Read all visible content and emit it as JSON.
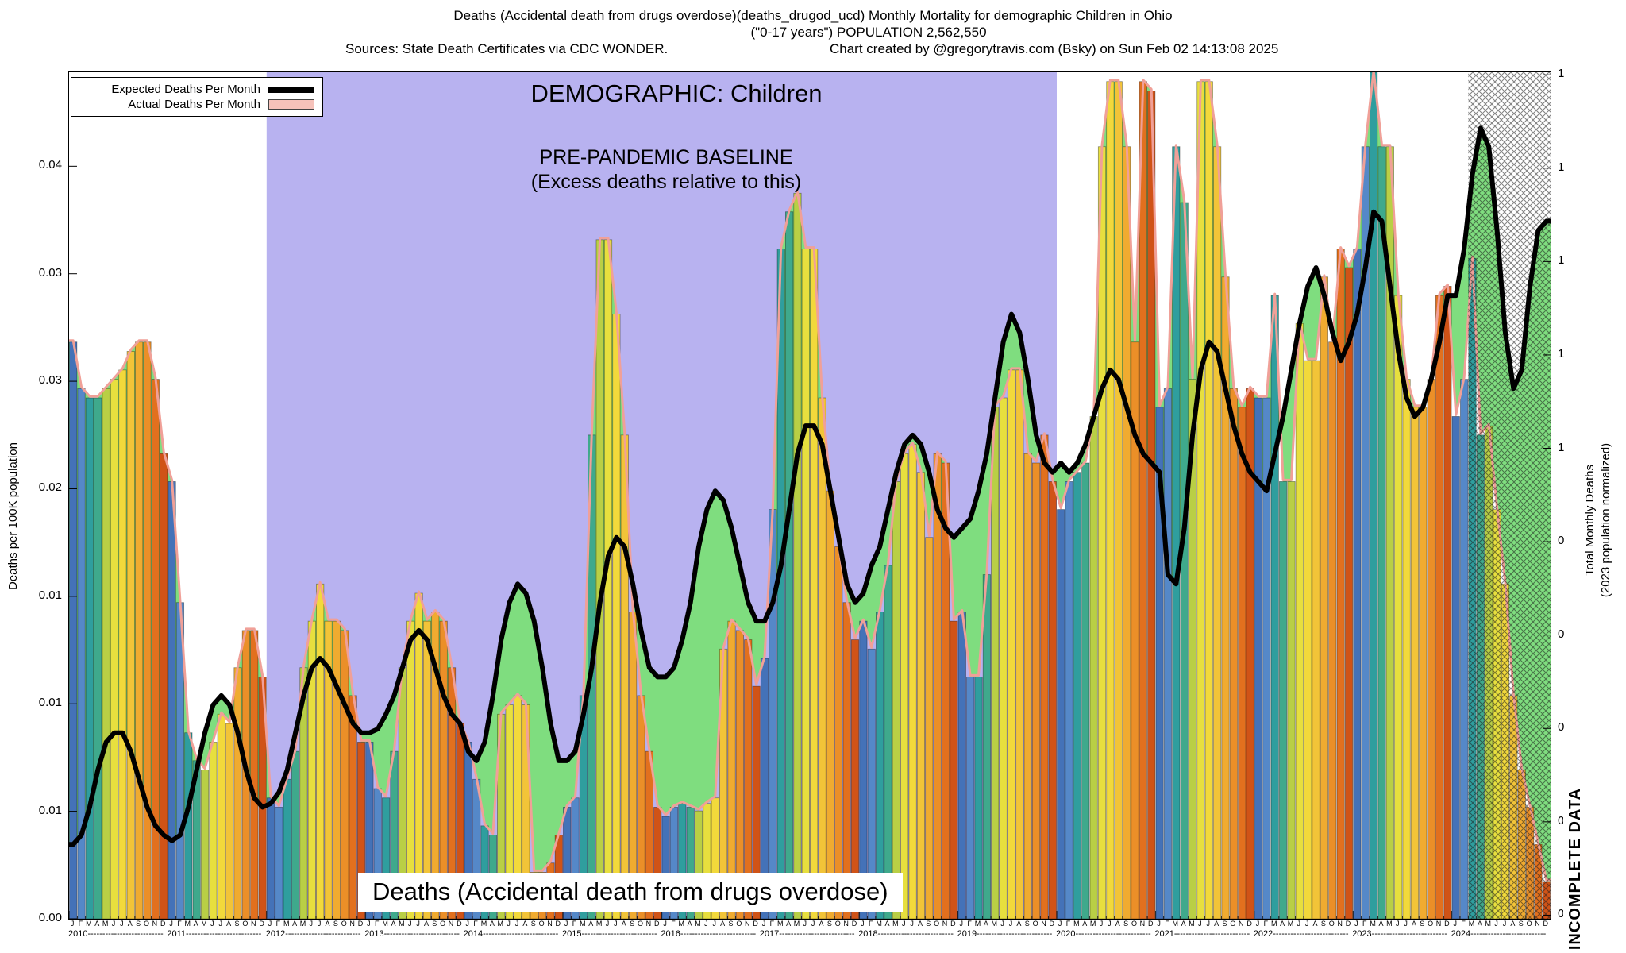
{
  "header": {
    "line1": "Deaths (Accidental death from drugs overdose)(deaths_drugod_ucd) Monthly Mortality for demographic Children in Ohio",
    "line2": "(\"0-17 years\") POPULATION 2,562,550",
    "line3_left": "Sources: State Death Certificates via CDC WONDER.",
    "line3_right": "Chart created by @gregorytravis.com (Bsky) on Sun Feb 02 14:13:08 2025"
  },
  "legend": {
    "expected_label": "Expected Deaths Per Month",
    "actual_label": "Actual Deaths Per Month"
  },
  "annotations": {
    "demographic": "DEMOGRAPHIC: Children",
    "baseline_line1": "PRE-PANDEMIC BASELINE",
    "baseline_line2": "(Excess deaths relative to this)",
    "bottom_title": "Deaths (Accidental death from drugs overdose)",
    "incomplete": "INCOMPLETE DATA"
  },
  "axes": {
    "left_title": "Deaths per 100K population",
    "right_title_line1": "Total Monthly Deaths",
    "right_title_line2": "(2023 population normalized)",
    "left_tick_labels": [
      "0.04",
      "0.03",
      "0.03",
      "0.02",
      "0.01",
      "0.01",
      "0.01",
      "0.00"
    ],
    "right_tick_labels": [
      "1",
      "1",
      "1",
      "1",
      "1",
      "0",
      "0",
      "0",
      "0",
      "0"
    ]
  },
  "chart_data": {
    "type": "bar",
    "title": "Deaths (Accidental death from drugs overdose)(deaths_drugod_ucd) Monthly Mortality for demographic Children in Ohio",
    "subtitle": "(\"0-17 years\") POPULATION 2,562,550",
    "ylabel": "Deaths per 100K population",
    "y2label": "Total Monthly Deaths (2023 population normalized)",
    "ylim": [
      0,
      0.0455
    ],
    "years": [
      "2010",
      "2011",
      "2012",
      "2013",
      "2014",
      "2015",
      "2016",
      "2017",
      "2018",
      "2019",
      "2020",
      "2021",
      "2022",
      "2023",
      "2024"
    ],
    "months": [
      "J",
      "F",
      "M",
      "A",
      "M",
      "J",
      "J",
      "A",
      "S",
      "O",
      "N",
      "D"
    ],
    "baseline_region": {
      "label": "PRE-PANDEMIC BASELINE",
      "from_year": "2012",
      "to_year": "2019",
      "color": "#b8b2f0"
    },
    "incomplete_region": {
      "label": "INCOMPLETE DATA",
      "from": "2024-03"
    },
    "colors": {
      "month_palette": [
        "#4472b8",
        "#5588c8",
        "#2f9e9e",
        "#3fa98c",
        "#b9cf45",
        "#e7df3e",
        "#f2d93b",
        "#f2c438",
        "#f0ab30",
        "#eb8f28",
        "#e2701e",
        "#d05317"
      ],
      "excess_area": "#7fdd7f",
      "actual_envelope": "#f0a098",
      "expected_line": "#000000",
      "bar_outline": "rgba(0,0,0,0.4)"
    },
    "series": [
      {
        "name": "Actual Deaths Per Month",
        "style": "bars",
        "values_by_year": {
          "2010": [
            0.031,
            0.0285,
            0.028,
            0.028,
            0.0285,
            0.029,
            0.0295,
            0.0305,
            0.031,
            0.031,
            0.029,
            0.025
          ],
          "2011": [
            0.0235,
            0.017,
            0.01,
            0.0085,
            0.008,
            0.0095,
            0.011,
            0.0105,
            0.0135,
            0.0155,
            0.0155,
            0.013
          ],
          "2012": [
            0.0065,
            0.006,
            0.0075,
            0.009,
            0.0135,
            0.016,
            0.018,
            0.016,
            0.016,
            0.0155,
            0.012,
            0.0095
          ],
          "2013": [
            0.0095,
            0.007,
            0.0065,
            0.009,
            0.0135,
            0.016,
            0.0175,
            0.016,
            0.0165,
            0.016,
            0.0135,
            0.0105
          ],
          "2014": [
            0.0095,
            0.0075,
            0.005,
            0.0045,
            0.011,
            0.0115,
            0.012,
            0.0115,
            0.0025,
            0.0025,
            0.003,
            0.0045
          ],
          "2015": [
            0.006,
            0.0065,
            0.012,
            0.026,
            0.0365,
            0.0365,
            0.0325,
            0.026,
            0.0165,
            0.012,
            0.009,
            0.006
          ],
          "2016": [
            0.0055,
            0.006,
            0.0062,
            0.006,
            0.0058,
            0.0062,
            0.0065,
            0.0145,
            0.016,
            0.0155,
            0.015,
            0.0125
          ],
          "2017": [
            0.014,
            0.022,
            0.036,
            0.038,
            0.039,
            0.036,
            0.036,
            0.028,
            0.023,
            0.02,
            0.017,
            0.015
          ],
          "2018": [
            0.016,
            0.0145,
            0.0165,
            0.019,
            0.0235,
            0.025,
            0.0255,
            0.024,
            0.0205,
            0.025,
            0.0245,
            0.016
          ],
          "2019": [
            0.0165,
            0.013,
            0.013,
            0.0185,
            0.0275,
            0.028,
            0.0295,
            0.0295,
            0.025,
            0.0245,
            0.026,
            0.0235
          ],
          "2020": [
            0.022,
            0.0235,
            0.024,
            0.0245,
            0.027,
            0.0415,
            0.045,
            0.045,
            0.0415,
            0.031,
            0.045,
            0.0445
          ],
          "2021": [
            0.0275,
            0.0285,
            0.0415,
            0.0385,
            0.029,
            0.045,
            0.045,
            0.0415,
            0.0345,
            0.0285,
            0.0275,
            0.0285
          ],
          "2022": [
            0.028,
            0.028,
            0.0335,
            0.0235,
            0.0235,
            0.032,
            0.03,
            0.03,
            0.0345,
            0.031,
            0.036,
            0.035
          ],
          "2023": [
            0.036,
            0.0415,
            0.0455,
            0.0415,
            0.0415,
            0.0335,
            0.029,
            0.0275,
            0.0275,
            0.029,
            0.0335,
            0.034
          ],
          "2024": [
            0.027,
            0.029,
            0.0355,
            0.026,
            0.0265,
            0.022,
            0.018,
            0.012,
            0.008,
            0.006,
            0.004,
            0.002
          ]
        }
      },
      {
        "name": "Expected Deaths Per Month",
        "style": "line",
        "values_by_year": {
          "2010": [
            0.004,
            0.0045,
            0.006,
            0.008,
            0.0095,
            0.01,
            0.01,
            0.009,
            0.0075,
            0.006,
            0.005,
            0.0045
          ],
          "2011": [
            0.0042,
            0.0045,
            0.006,
            0.008,
            0.01,
            0.0115,
            0.012,
            0.0115,
            0.01,
            0.008,
            0.0065,
            0.006
          ],
          "2012": [
            0.0062,
            0.0068,
            0.008,
            0.01,
            0.012,
            0.0135,
            0.014,
            0.0135,
            0.0125,
            0.0115,
            0.0105,
            0.01
          ],
          "2013": [
            0.01,
            0.0102,
            0.011,
            0.012,
            0.0135,
            0.015,
            0.0155,
            0.015,
            0.0135,
            0.012,
            0.011,
            0.0105
          ],
          "2014": [
            0.009,
            0.0085,
            0.0095,
            0.012,
            0.015,
            0.017,
            0.018,
            0.0175,
            0.016,
            0.0135,
            0.0105,
            0.0085
          ],
          "2015": [
            0.0085,
            0.009,
            0.011,
            0.0135,
            0.017,
            0.0195,
            0.0205,
            0.02,
            0.018,
            0.0155,
            0.0135,
            0.013
          ],
          "2016": [
            0.013,
            0.0135,
            0.015,
            0.017,
            0.02,
            0.022,
            0.023,
            0.0225,
            0.021,
            0.019,
            0.017,
            0.016
          ],
          "2017": [
            0.016,
            0.017,
            0.019,
            0.022,
            0.025,
            0.0265,
            0.0265,
            0.0255,
            0.023,
            0.0205,
            0.018,
            0.017
          ],
          "2018": [
            0.0175,
            0.019,
            0.02,
            0.022,
            0.024,
            0.0255,
            0.026,
            0.0255,
            0.024,
            0.022,
            0.021,
            0.0205
          ],
          "2019": [
            0.021,
            0.0215,
            0.023,
            0.025,
            0.028,
            0.031,
            0.0325,
            0.0315,
            0.029,
            0.026,
            0.0245,
            0.024
          ],
          "2020": [
            0.0245,
            0.024,
            0.0245,
            0.0255,
            0.027,
            0.0285,
            0.0295,
            0.029,
            0.0275,
            0.026,
            0.025,
            0.0245
          ],
          "2021": [
            0.024,
            0.0185,
            0.018,
            0.021,
            0.026,
            0.0295,
            0.031,
            0.0305,
            0.0285,
            0.0265,
            0.025,
            0.024
          ],
          "2022": [
            0.0235,
            0.023,
            0.025,
            0.027,
            0.0295,
            0.032,
            0.034,
            0.035,
            0.0335,
            0.0315,
            0.03,
            0.031
          ],
          "2023": [
            0.0325,
            0.035,
            0.038,
            0.0375,
            0.034,
            0.0305,
            0.028,
            0.027,
            0.0275,
            0.029,
            0.031,
            0.0335
          ],
          "2024": [
            0.0335,
            0.036,
            0.04,
            0.0425,
            0.0415,
            0.037,
            0.0315,
            0.0285,
            0.0295,
            0.034,
            0.037,
            0.0375
          ]
        }
      }
    ]
  }
}
